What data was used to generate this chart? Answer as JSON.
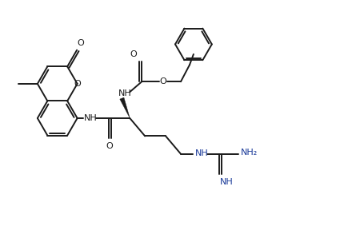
{
  "background": "#ffffff",
  "line_color": "#1a1a1a",
  "blue_color": "#1a3a99",
  "line_width": 1.4,
  "figsize": [
    4.5,
    2.88
  ],
  "dpi": 100,
  "xlim": [
    0,
    9.0
  ],
  "ylim": [
    0,
    5.76
  ]
}
